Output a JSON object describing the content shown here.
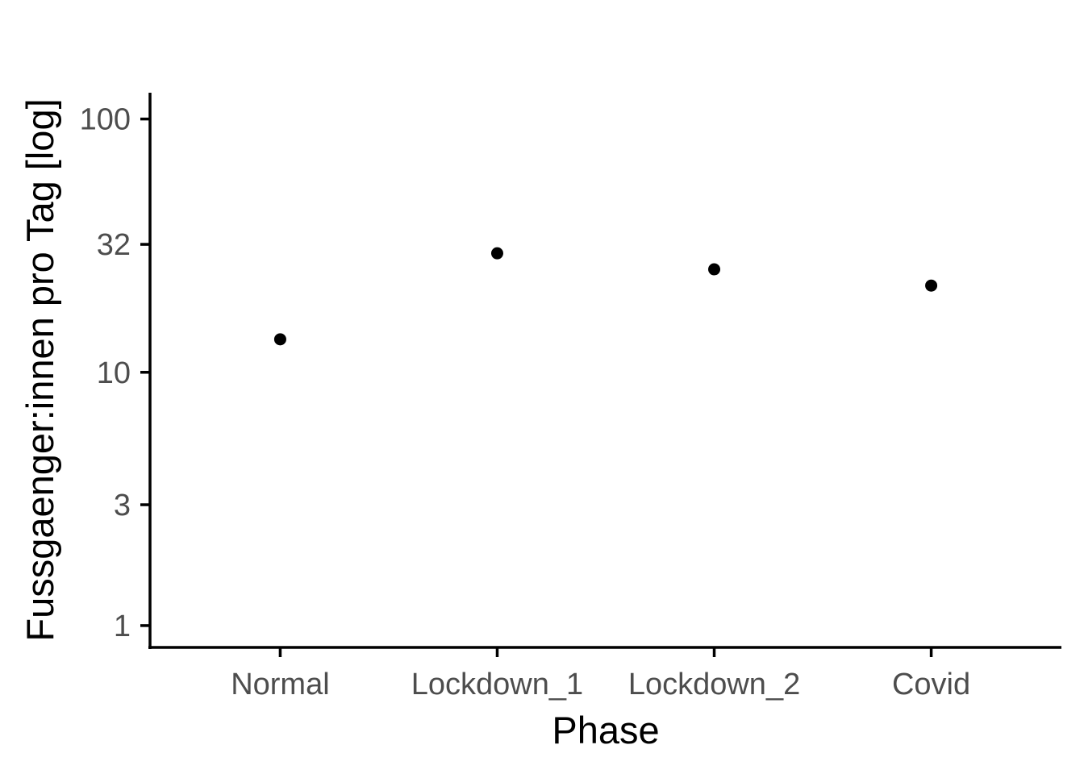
{
  "chart_data": {
    "type": "scatter",
    "xlabel": "Phase",
    "ylabel": "Fussgaenger:innen pro Tag [log]",
    "y_scale": "log",
    "ylim": [
      0.82,
      127
    ],
    "categories": [
      "Normal",
      "Lockdown_1",
      "Lockdown_2",
      "Covid"
    ],
    "y_ticks": [
      1,
      3,
      10,
      32,
      100
    ],
    "y_tick_labels": [
      "1",
      "3",
      "10",
      "32",
      "100"
    ],
    "series": [
      {
        "values": [
          13.5,
          29.5,
          25.5,
          22
        ]
      }
    ],
    "grid": false,
    "legend": "none",
    "colors": {
      "point": "#000000",
      "axis": "#000000",
      "tick_label": "#4d4d4d"
    }
  }
}
